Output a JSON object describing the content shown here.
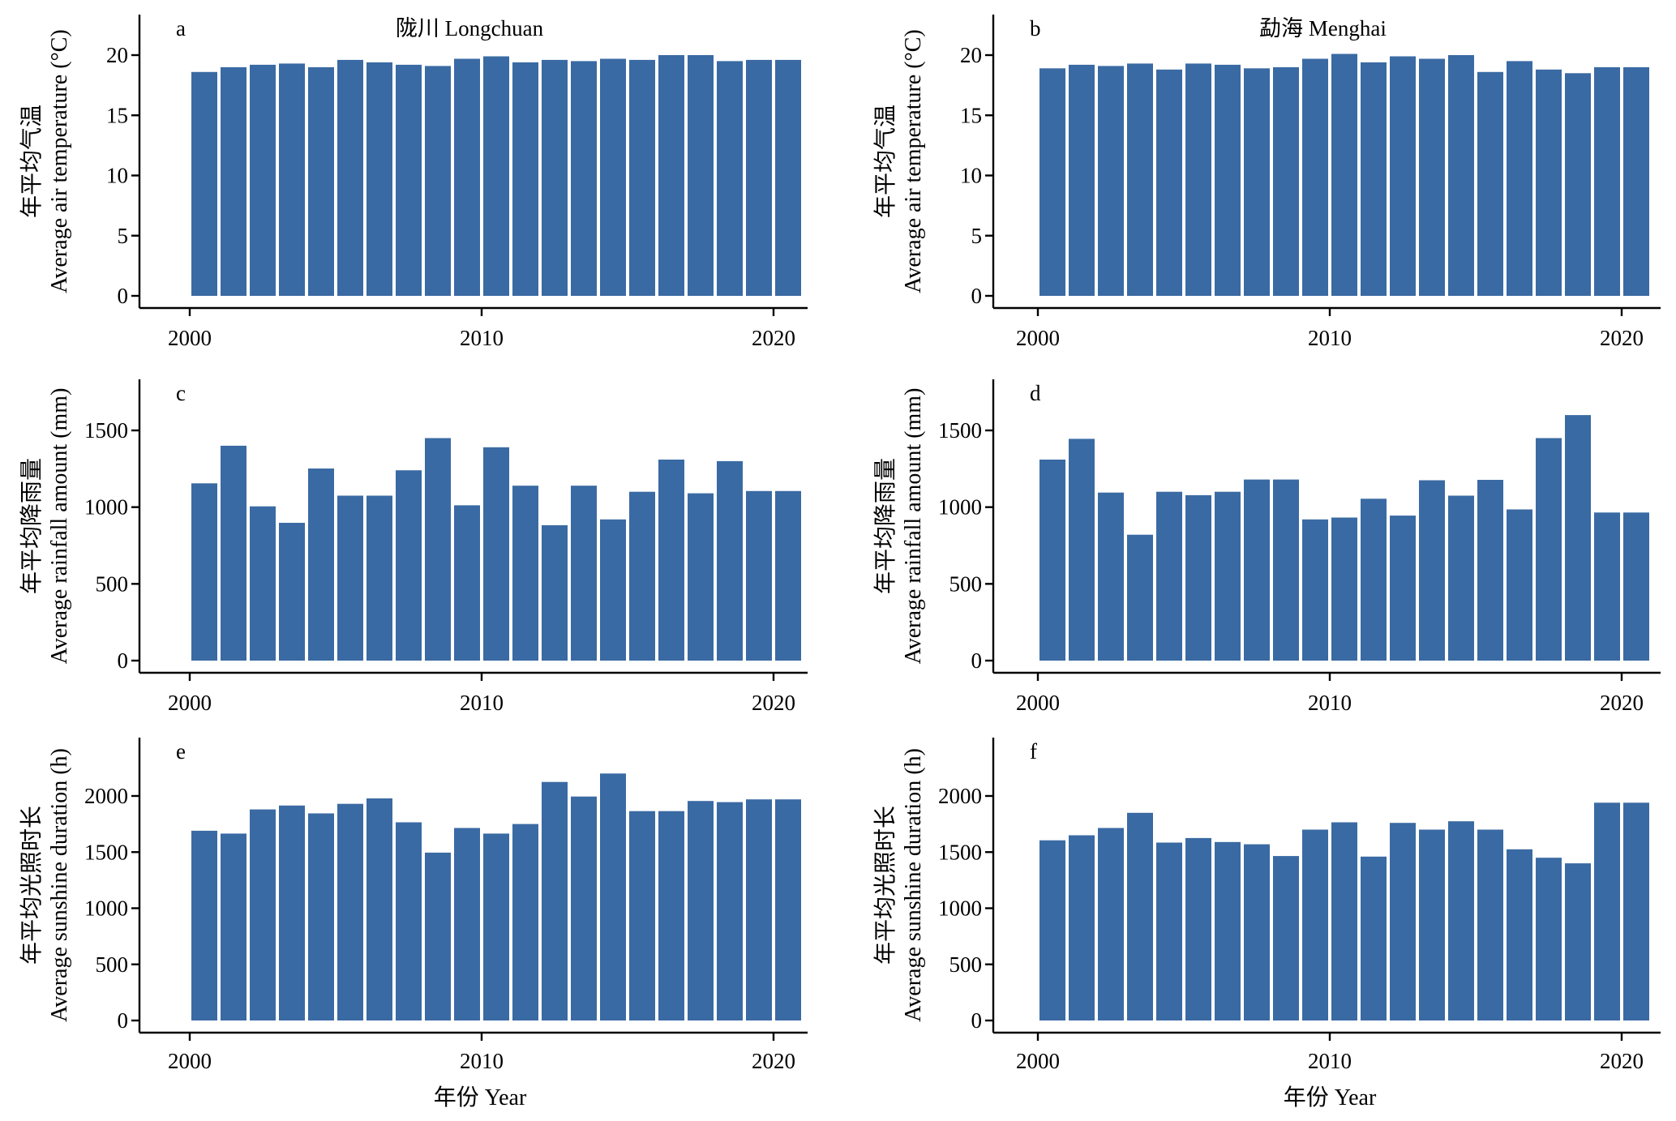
{
  "figure": {
    "xlabel": "年份 Year",
    "colors": {
      "bar": "#3a6aa3",
      "axis": "#000000"
    }
  },
  "chart_data": [
    {
      "id": "a",
      "label": "a",
      "title": "陇川 Longchuan",
      "type": "bar",
      "ylabel_cn": "年平均气温",
      "ylabel_en": "Average air temperature (°C)",
      "x": [
        2000,
        2001,
        2002,
        2003,
        2004,
        2005,
        2006,
        2007,
        2008,
        2009,
        2010,
        2011,
        2012,
        2013,
        2014,
        2015,
        2016,
        2017,
        2018,
        2019,
        2020
      ],
      "values": [
        18.6,
        19.0,
        19.2,
        19.3,
        19.0,
        19.6,
        19.4,
        19.2,
        19.1,
        19.7,
        19.9,
        19.4,
        19.6,
        19.5,
        19.7,
        19.6,
        20.0,
        20.0,
        19.5,
        19.6,
        19.6
      ],
      "ylim": [
        0,
        22
      ],
      "yticks": [
        0,
        5,
        10,
        15,
        20
      ],
      "xticks": [
        2000,
        2010,
        2020
      ]
    },
    {
      "id": "b",
      "label": "b",
      "title": "勐海 Menghai",
      "type": "bar",
      "ylabel_cn": "年平均气温",
      "ylabel_en": "Average air temperature (°C)",
      "x": [
        2000,
        2001,
        2002,
        2003,
        2004,
        2005,
        2006,
        2007,
        2008,
        2009,
        2010,
        2011,
        2012,
        2013,
        2014,
        2015,
        2016,
        2017,
        2018,
        2019,
        2020
      ],
      "values": [
        18.9,
        19.2,
        19.1,
        19.3,
        18.8,
        19.3,
        19.2,
        18.9,
        19.0,
        19.7,
        20.1,
        19.4,
        19.9,
        19.7,
        20.0,
        18.6,
        19.5,
        18.8,
        18.5,
        19.0,
        19.0
      ],
      "ylim": [
        0,
        22
      ],
      "yticks": [
        0,
        5,
        10,
        15,
        20
      ],
      "xticks": [
        2000,
        2010,
        2020
      ]
    },
    {
      "id": "c",
      "label": "c",
      "title": "",
      "type": "bar",
      "ylabel_cn": "年平均降雨量",
      "ylabel_en": "Average rainfall amount (mm)",
      "x": [
        2000,
        2001,
        2002,
        2003,
        2004,
        2005,
        2006,
        2007,
        2008,
        2009,
        2010,
        2011,
        2012,
        2013,
        2014,
        2015,
        2016,
        2017,
        2018,
        2019,
        2020
      ],
      "values": [
        1155,
        1400,
        1005,
        898,
        1252,
        1075,
        1075,
        1240,
        1450,
        1012,
        1390,
        1140,
        882,
        1140,
        920,
        1100,
        1310,
        1090,
        1300,
        1105,
        1105
      ],
      "ylim": [
        0,
        1800
      ],
      "yticks": [
        0,
        500,
        1000,
        1500
      ],
      "xticks": [
        2000,
        2010,
        2020
      ]
    },
    {
      "id": "d",
      "label": "d",
      "title": "",
      "type": "bar",
      "ylabel_cn": "年平均降雨量",
      "ylabel_en": "Average rainfall amount (mm)",
      "x": [
        2000,
        2001,
        2002,
        2003,
        2004,
        2005,
        2006,
        2007,
        2008,
        2009,
        2010,
        2011,
        2012,
        2013,
        2014,
        2015,
        2016,
        2017,
        2018,
        2019,
        2020
      ],
      "values": [
        1310,
        1445,
        1095,
        820,
        1100,
        1078,
        1100,
        1180,
        1180,
        920,
        932,
        1055,
        945,
        1175,
        1075,
        1178,
        985,
        1450,
        1600,
        965,
        965
      ],
      "ylim": [
        0,
        1800
      ],
      "yticks": [
        0,
        500,
        1000,
        1500
      ],
      "xticks": [
        2000,
        2010,
        2020
      ]
    },
    {
      "id": "e",
      "label": "e",
      "title": "",
      "type": "bar",
      "ylabel_cn": "年平均光照时长",
      "ylabel_en": "Average sunshine duration (h)",
      "x": [
        2000,
        2001,
        2002,
        2003,
        2004,
        2005,
        2006,
        2007,
        2008,
        2009,
        2010,
        2011,
        2012,
        2013,
        2014,
        2015,
        2016,
        2017,
        2018,
        2019,
        2020
      ],
      "values": [
        1690,
        1665,
        1880,
        1915,
        1845,
        1930,
        1978,
        1765,
        1495,
        1715,
        1665,
        1750,
        2125,
        1995,
        2200,
        1865,
        1865,
        1955,
        1945,
        1970,
        1970
      ],
      "ylim": [
        0,
        2500
      ],
      "yticks": [
        0,
        500,
        1000,
        1500,
        2000
      ],
      "xticks": [
        2000,
        2010,
        2020
      ]
    },
    {
      "id": "f",
      "label": "f",
      "title": "",
      "type": "bar",
      "ylabel_cn": "年平均光照时长",
      "ylabel_en": "Average sunshine duration (h)",
      "x": [
        2000,
        2001,
        2002,
        2003,
        2004,
        2005,
        2006,
        2007,
        2008,
        2009,
        2010,
        2011,
        2012,
        2013,
        2014,
        2015,
        2016,
        2017,
        2018,
        2019,
        2020
      ],
      "values": [
        1605,
        1650,
        1715,
        1850,
        1585,
        1625,
        1590,
        1570,
        1465,
        1700,
        1765,
        1460,
        1760,
        1700,
        1775,
        1700,
        1525,
        1450,
        1400,
        1940,
        1940
      ],
      "ylim": [
        0,
        2500
      ],
      "yticks": [
        0,
        500,
        1000,
        1500,
        2000
      ],
      "xticks": [
        2000,
        2010,
        2020
      ]
    }
  ]
}
